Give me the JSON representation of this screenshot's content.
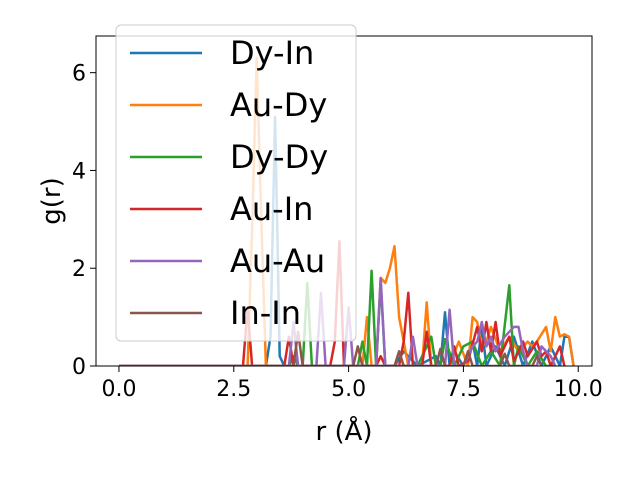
{
  "chart_data": {
    "type": "line",
    "title": "",
    "xlabel": "r (Å)",
    "ylabel": "g(r)",
    "xlim": [
      -0.5,
      10.3
    ],
    "ylim": [
      0,
      6.75
    ],
    "xticks": [
      0.0,
      2.5,
      5.0,
      7.5,
      10.0
    ],
    "xtick_labels": [
      "0.0",
      "2.5",
      "5.0",
      "7.5",
      "10.0"
    ],
    "yticks": [
      0,
      2,
      4,
      6
    ],
    "ytick_labels": [
      "0",
      "2",
      "4",
      "6"
    ],
    "grid": false,
    "legend_position": "upper-left",
    "series": [
      {
        "name": "Dy-In",
        "color": "#1f77b4",
        "x": [
          0,
          2.9,
          3.0,
          3.1,
          3.2,
          3.3,
          3.4,
          3.5,
          3.6,
          3.7,
          4.0,
          5.5,
          5.8,
          6.0,
          6.2,
          6.5,
          6.9,
          7.0,
          7.1,
          7.2,
          7.3,
          7.5,
          7.7,
          7.8,
          7.9,
          8.0,
          8.2,
          8.4,
          8.6,
          8.8,
          9.0,
          9.2,
          9.4,
          9.6,
          9.7,
          9.8,
          9.9
        ],
        "y": [
          0,
          0,
          0,
          0,
          0,
          0.6,
          5.1,
          0.2,
          0,
          0,
          0,
          0,
          0,
          0,
          0.3,
          0,
          0.2,
          0,
          1.1,
          0,
          0.3,
          0,
          0.5,
          0,
          0.8,
          0,
          0.4,
          0,
          0.6,
          0,
          0.5,
          0,
          0.4,
          0,
          0.6,
          0.6,
          0
        ]
      },
      {
        "name": "Au-Dy",
        "color": "#ff7f0e",
        "x": [
          0,
          2.8,
          2.9,
          3.0,
          3.1,
          3.2,
          3.3,
          3.5,
          4.0,
          5.0,
          5.3,
          5.4,
          5.5,
          5.6,
          5.7,
          5.8,
          5.9,
          6.0,
          6.1,
          6.3,
          6.5,
          6.6,
          6.7,
          6.8,
          7.0,
          7.2,
          7.4,
          7.6,
          7.7,
          7.8,
          7.9,
          8.0,
          8.1,
          8.3,
          8.5,
          8.7,
          8.9,
          9.0,
          9.1,
          9.3,
          9.4,
          9.5,
          9.6,
          9.7,
          9.8,
          9.9
        ],
        "y": [
          0,
          0,
          2.8,
          6.3,
          3.0,
          0,
          0,
          0,
          0,
          0,
          0,
          1.0,
          0,
          0,
          1.8,
          1.7,
          2.0,
          2.45,
          1.0,
          0,
          0,
          0,
          1.3,
          0,
          0,
          0,
          0.5,
          0,
          1.0,
          0.9,
          0.4,
          0.5,
          0.8,
          0.3,
          0.6,
          0.3,
          0.5,
          0.4,
          0.5,
          0.8,
          0.3,
          1.0,
          0.6,
          0.65,
          0.6,
          0
        ]
      },
      {
        "name": "Dy-Dy",
        "color": "#2ca02c",
        "x": [
          0,
          3.7,
          3.8,
          3.9,
          4.0,
          4.1,
          4.2,
          5.2,
          5.3,
          5.4,
          5.5,
          5.6,
          5.7,
          5.8,
          6.0,
          6.5,
          6.8,
          6.9,
          7.0,
          7.1,
          7.3,
          7.5,
          7.7,
          7.9,
          8.1,
          8.3,
          8.5,
          8.6,
          8.7,
          8.9,
          9.1,
          9.3,
          9.5
        ],
        "y": [
          0,
          0,
          0.2,
          0,
          0,
          1.7,
          0,
          0,
          0.5,
          0,
          1.95,
          0,
          1.7,
          0,
          0,
          0,
          0.6,
          0,
          0,
          0.55,
          0,
          0.4,
          0.5,
          0,
          0.3,
          0,
          1.65,
          0,
          0.4,
          0,
          0.3,
          0,
          0
        ]
      },
      {
        "name": "Au-In",
        "color": "#d62728",
        "x": [
          0,
          2.7,
          2.8,
          2.9,
          3.0,
          3.6,
          3.7,
          3.8,
          4.6,
          4.7,
          4.8,
          4.9,
          5.6,
          5.7,
          5.8,
          6.1,
          6.2,
          6.3,
          6.4,
          6.6,
          6.7,
          6.8,
          7.2,
          7.3,
          7.4,
          7.6,
          7.8,
          7.9,
          8.0,
          8.1,
          8.2,
          8.3,
          8.5,
          8.6,
          8.8,
          8.9,
          9.1,
          9.2,
          9.3,
          9.4,
          9.6,
          9.7
        ],
        "y": [
          0,
          0,
          1.2,
          0,
          0,
          0,
          0.6,
          0,
          0,
          0.5,
          2.55,
          0,
          0,
          0.2,
          0,
          0,
          0.5,
          1.5,
          0,
          0,
          0.7,
          0,
          0,
          0.4,
          0,
          0.1,
          0.8,
          0.3,
          0.9,
          0.3,
          0.9,
          0.2,
          0.6,
          0.1,
          0.5,
          0.2,
          0.5,
          0.2,
          0.3,
          0,
          0.4,
          0
        ]
      },
      {
        "name": "Au-Au",
        "color": "#9467bd",
        "x": [
          0,
          3.7,
          3.8,
          3.9,
          4.1,
          4.3,
          4.4,
          4.5,
          4.7,
          4.9,
          5.0,
          5.1,
          5.6,
          5.7,
          5.8,
          6.3,
          6.4,
          6.5,
          7.1,
          7.2,
          7.3,
          7.5,
          7.7,
          7.8,
          7.9,
          8.0,
          8.1,
          8.2,
          8.4,
          8.6,
          8.7,
          8.8,
          8.9,
          9.1,
          9.2,
          9.4,
          9.5
        ],
        "y": [
          0,
          0,
          0.9,
          0,
          0,
          0,
          1.5,
          0,
          0,
          0,
          1.2,
          0,
          0,
          1.8,
          0,
          0,
          0.6,
          0,
          0,
          1.15,
          0,
          0,
          0.4,
          0.5,
          0.9,
          0.4,
          0.6,
          0.3,
          0.6,
          0.8,
          0.8,
          0.3,
          0,
          0,
          0.4,
          0.2,
          0
        ]
      },
      {
        "name": "In-In",
        "color": "#8c564b",
        "x": [
          0,
          3.8,
          3.9,
          4.0,
          5.1,
          5.2,
          5.3,
          5.4,
          6.0,
          6.1,
          6.2,
          6.9,
          7.0,
          7.1,
          7.5,
          7.6,
          7.7,
          8.3,
          8.4,
          8.5,
          9.0,
          9.1,
          9.2
        ],
        "y": [
          0,
          0,
          0.7,
          0,
          0,
          0.4,
          0,
          0,
          0,
          0.3,
          0,
          0,
          0.35,
          0,
          0,
          0.3,
          0,
          0,
          0.25,
          0,
          0,
          0.2,
          0
        ]
      }
    ]
  }
}
